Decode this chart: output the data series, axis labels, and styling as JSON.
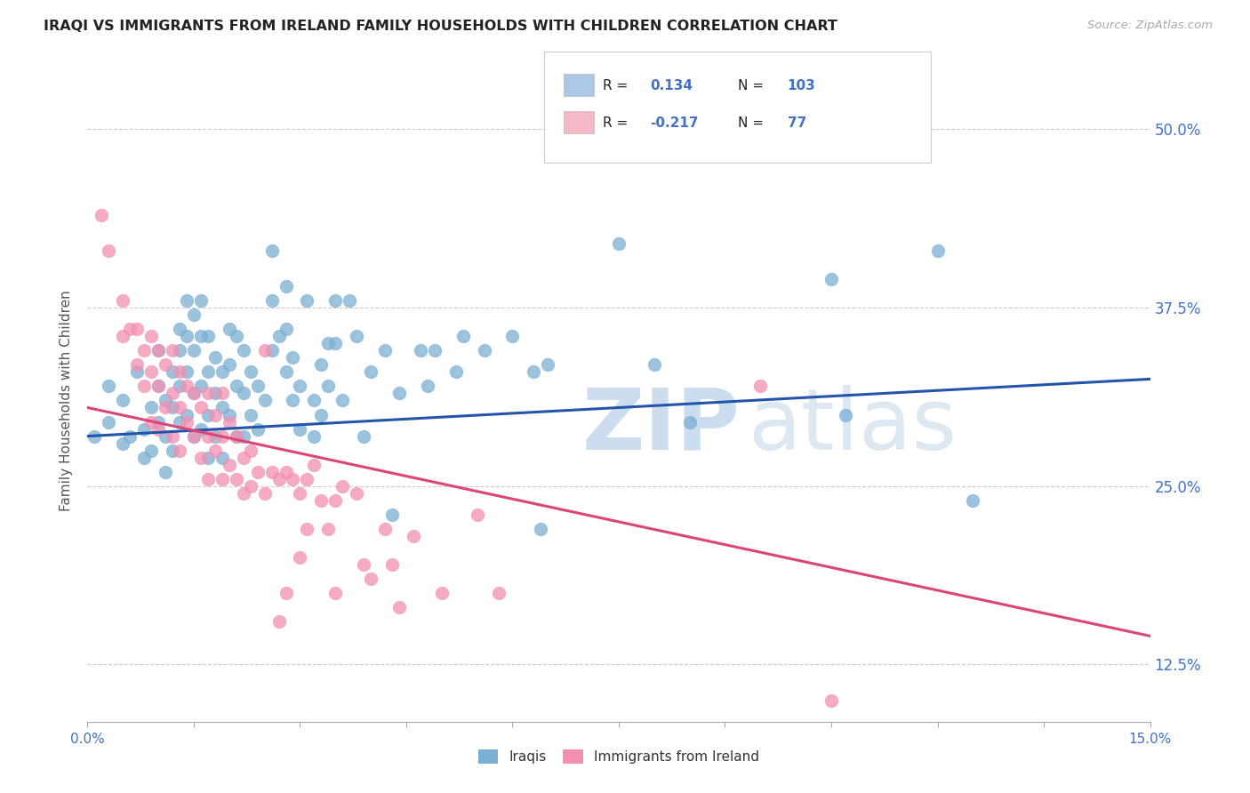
{
  "title": "IRAQI VS IMMIGRANTS FROM IRELAND FAMILY HOUSEHOLDS WITH CHILDREN CORRELATION CHART",
  "source": "Source: ZipAtlas.com",
  "ylabel": "Family Households with Children",
  "ytick_labels": [
    "12.5%",
    "25.0%",
    "37.5%",
    "50.0%"
  ],
  "ytick_values": [
    0.125,
    0.25,
    0.375,
    0.5
  ],
  "xlim": [
    0.0,
    0.15
  ],
  "ylim": [
    0.085,
    0.535
  ],
  "legend_items": [
    {
      "color": "#aec6e8",
      "R": "0.134",
      "N": "103"
    },
    {
      "color": "#f4b8c8",
      "R": "-0.217",
      "N": "77"
    }
  ],
  "iraqis_color": "#7bafd4",
  "ireland_color": "#f48fb1",
  "trendline_iraqis_color": "#2255aa",
  "trendline_ireland_color": "#dd4477",
  "iraqis_trendline_y": [
    0.285,
    0.325
  ],
  "ireland_trendline_y": [
    0.305,
    0.145
  ],
  "iraqis_points": [
    [
      0.001,
      0.285
    ],
    [
      0.003,
      0.295
    ],
    [
      0.003,
      0.32
    ],
    [
      0.005,
      0.31
    ],
    [
      0.005,
      0.28
    ],
    [
      0.006,
      0.285
    ],
    [
      0.007,
      0.33
    ],
    [
      0.008,
      0.29
    ],
    [
      0.008,
      0.27
    ],
    [
      0.009,
      0.305
    ],
    [
      0.009,
      0.275
    ],
    [
      0.01,
      0.345
    ],
    [
      0.01,
      0.32
    ],
    [
      0.01,
      0.295
    ],
    [
      0.011,
      0.31
    ],
    [
      0.011,
      0.285
    ],
    [
      0.011,
      0.26
    ],
    [
      0.012,
      0.33
    ],
    [
      0.012,
      0.305
    ],
    [
      0.012,
      0.275
    ],
    [
      0.013,
      0.36
    ],
    [
      0.013,
      0.345
    ],
    [
      0.013,
      0.32
    ],
    [
      0.013,
      0.295
    ],
    [
      0.014,
      0.38
    ],
    [
      0.014,
      0.355
    ],
    [
      0.014,
      0.33
    ],
    [
      0.014,
      0.3
    ],
    [
      0.015,
      0.37
    ],
    [
      0.015,
      0.345
    ],
    [
      0.015,
      0.315
    ],
    [
      0.015,
      0.285
    ],
    [
      0.016,
      0.38
    ],
    [
      0.016,
      0.355
    ],
    [
      0.016,
      0.32
    ],
    [
      0.016,
      0.29
    ],
    [
      0.017,
      0.355
    ],
    [
      0.017,
      0.33
    ],
    [
      0.017,
      0.3
    ],
    [
      0.017,
      0.27
    ],
    [
      0.018,
      0.34
    ],
    [
      0.018,
      0.315
    ],
    [
      0.018,
      0.285
    ],
    [
      0.019,
      0.33
    ],
    [
      0.019,
      0.305
    ],
    [
      0.019,
      0.27
    ],
    [
      0.02,
      0.36
    ],
    [
      0.02,
      0.335
    ],
    [
      0.02,
      0.3
    ],
    [
      0.021,
      0.355
    ],
    [
      0.021,
      0.32
    ],
    [
      0.021,
      0.285
    ],
    [
      0.022,
      0.345
    ],
    [
      0.022,
      0.315
    ],
    [
      0.022,
      0.285
    ],
    [
      0.023,
      0.33
    ],
    [
      0.023,
      0.3
    ],
    [
      0.024,
      0.32
    ],
    [
      0.024,
      0.29
    ],
    [
      0.025,
      0.31
    ],
    [
      0.026,
      0.415
    ],
    [
      0.026,
      0.38
    ],
    [
      0.026,
      0.345
    ],
    [
      0.027,
      0.355
    ],
    [
      0.028,
      0.39
    ],
    [
      0.028,
      0.36
    ],
    [
      0.028,
      0.33
    ],
    [
      0.029,
      0.34
    ],
    [
      0.029,
      0.31
    ],
    [
      0.03,
      0.32
    ],
    [
      0.03,
      0.29
    ],
    [
      0.031,
      0.38
    ],
    [
      0.032,
      0.31
    ],
    [
      0.032,
      0.285
    ],
    [
      0.033,
      0.335
    ],
    [
      0.033,
      0.3
    ],
    [
      0.034,
      0.35
    ],
    [
      0.034,
      0.32
    ],
    [
      0.035,
      0.38
    ],
    [
      0.035,
      0.35
    ],
    [
      0.036,
      0.31
    ],
    [
      0.037,
      0.38
    ],
    [
      0.038,
      0.355
    ],
    [
      0.039,
      0.285
    ],
    [
      0.04,
      0.33
    ],
    [
      0.042,
      0.345
    ],
    [
      0.043,
      0.23
    ],
    [
      0.044,
      0.315
    ],
    [
      0.047,
      0.345
    ],
    [
      0.048,
      0.32
    ],
    [
      0.049,
      0.345
    ],
    [
      0.052,
      0.33
    ],
    [
      0.053,
      0.355
    ],
    [
      0.056,
      0.345
    ],
    [
      0.06,
      0.355
    ],
    [
      0.063,
      0.33
    ],
    [
      0.064,
      0.22
    ],
    [
      0.065,
      0.335
    ],
    [
      0.075,
      0.42
    ],
    [
      0.08,
      0.335
    ],
    [
      0.085,
      0.295
    ],
    [
      0.105,
      0.395
    ],
    [
      0.107,
      0.3
    ],
    [
      0.12,
      0.415
    ],
    [
      0.125,
      0.24
    ]
  ],
  "ireland_points": [
    [
      0.002,
      0.44
    ],
    [
      0.003,
      0.415
    ],
    [
      0.005,
      0.38
    ],
    [
      0.005,
      0.355
    ],
    [
      0.006,
      0.36
    ],
    [
      0.007,
      0.36
    ],
    [
      0.007,
      0.335
    ],
    [
      0.008,
      0.345
    ],
    [
      0.008,
      0.32
    ],
    [
      0.009,
      0.355
    ],
    [
      0.009,
      0.33
    ],
    [
      0.009,
      0.295
    ],
    [
      0.01,
      0.345
    ],
    [
      0.01,
      0.32
    ],
    [
      0.01,
      0.29
    ],
    [
      0.011,
      0.335
    ],
    [
      0.011,
      0.305
    ],
    [
      0.012,
      0.345
    ],
    [
      0.012,
      0.315
    ],
    [
      0.012,
      0.285
    ],
    [
      0.013,
      0.33
    ],
    [
      0.013,
      0.305
    ],
    [
      0.013,
      0.275
    ],
    [
      0.014,
      0.32
    ],
    [
      0.014,
      0.295
    ],
    [
      0.015,
      0.315
    ],
    [
      0.015,
      0.285
    ],
    [
      0.016,
      0.305
    ],
    [
      0.016,
      0.27
    ],
    [
      0.017,
      0.315
    ],
    [
      0.017,
      0.285
    ],
    [
      0.017,
      0.255
    ],
    [
      0.018,
      0.3
    ],
    [
      0.018,
      0.275
    ],
    [
      0.019,
      0.315
    ],
    [
      0.019,
      0.285
    ],
    [
      0.019,
      0.255
    ],
    [
      0.02,
      0.295
    ],
    [
      0.02,
      0.265
    ],
    [
      0.021,
      0.285
    ],
    [
      0.021,
      0.255
    ],
    [
      0.022,
      0.27
    ],
    [
      0.022,
      0.245
    ],
    [
      0.023,
      0.275
    ],
    [
      0.023,
      0.25
    ],
    [
      0.024,
      0.26
    ],
    [
      0.025,
      0.345
    ],
    [
      0.025,
      0.245
    ],
    [
      0.026,
      0.26
    ],
    [
      0.027,
      0.255
    ],
    [
      0.027,
      0.155
    ],
    [
      0.028,
      0.26
    ],
    [
      0.028,
      0.175
    ],
    [
      0.029,
      0.255
    ],
    [
      0.03,
      0.245
    ],
    [
      0.03,
      0.2
    ],
    [
      0.031,
      0.255
    ],
    [
      0.031,
      0.22
    ],
    [
      0.032,
      0.265
    ],
    [
      0.033,
      0.24
    ],
    [
      0.034,
      0.22
    ],
    [
      0.035,
      0.24
    ],
    [
      0.035,
      0.175
    ],
    [
      0.036,
      0.25
    ],
    [
      0.038,
      0.245
    ],
    [
      0.039,
      0.195
    ],
    [
      0.04,
      0.185
    ],
    [
      0.042,
      0.22
    ],
    [
      0.043,
      0.195
    ],
    [
      0.044,
      0.165
    ],
    [
      0.046,
      0.215
    ],
    [
      0.05,
      0.175
    ],
    [
      0.055,
      0.23
    ],
    [
      0.058,
      0.175
    ],
    [
      0.095,
      0.32
    ],
    [
      0.105,
      0.1
    ]
  ]
}
